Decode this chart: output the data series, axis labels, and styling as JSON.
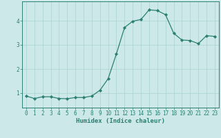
{
  "x_vals": [
    0,
    1,
    2,
    3,
    4,
    5,
    6,
    7,
    8,
    9,
    10,
    11,
    12,
    13,
    14,
    15,
    16,
    17,
    18,
    19,
    20,
    21,
    22,
    23
  ],
  "y_vals": [
    0.88,
    0.78,
    0.85,
    0.85,
    0.78,
    0.77,
    0.82,
    0.82,
    0.88,
    1.12,
    1.6,
    2.62,
    3.72,
    3.98,
    4.05,
    4.45,
    4.42,
    4.25,
    3.48,
    3.2,
    3.18,
    3.05,
    3.38,
    3.35
  ],
  "xlabel": "Humidex (Indice chaleur)",
  "xlim": [
    -0.5,
    23.5
  ],
  "ylim": [
    0.4,
    4.8
  ],
  "yticks": [
    1,
    2,
    3,
    4
  ],
  "xticks": [
    0,
    1,
    2,
    3,
    4,
    5,
    6,
    7,
    8,
    9,
    10,
    11,
    12,
    13,
    14,
    15,
    16,
    17,
    18,
    19,
    20,
    21,
    22,
    23
  ],
  "line_color": "#2a7f72",
  "marker_color": "#2a7f72",
  "bg_color": "#cce8e8",
  "grid_color": "#aad0d0",
  "axis_color": "#2a7f72",
  "tick_color": "#2a7f72",
  "xlabel_color": "#2a7f72",
  "label_fontsize": 6.5,
  "tick_fontsize": 5.5
}
